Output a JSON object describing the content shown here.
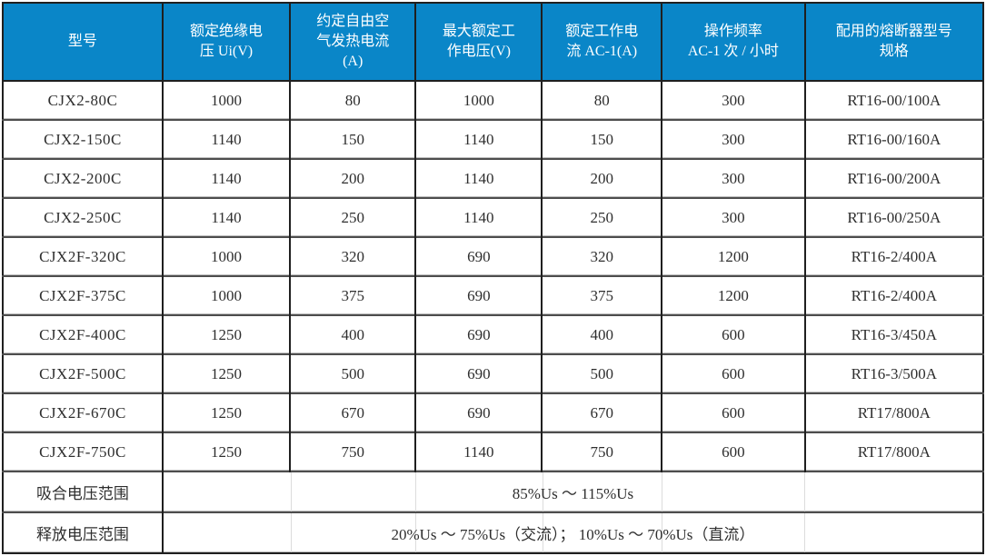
{
  "table": {
    "columns": [
      {
        "id": "model",
        "label": "型号"
      },
      {
        "id": "rated_insulation_voltage",
        "label": "额定绝缘电\n压 Ui(V)"
      },
      {
        "id": "conventional_free_air_thermal_current",
        "label": "约定自由空\n气发热电流\n(A)"
      },
      {
        "id": "max_rated_working_voltage",
        "label": "最大额定工\n作电压(V)"
      },
      {
        "id": "rated_working_current_ac1",
        "label": "额定工作电\n流 AC-1(A)"
      },
      {
        "id": "operating_frequency",
        "label": "操作频率\nAC-1 次 / 小时"
      },
      {
        "id": "matched_fuse_spec",
        "label": "配用的熔断器型号\n规格"
      }
    ],
    "rows": [
      [
        "CJX2-80C",
        "1000",
        "80",
        "1000",
        "80",
        "300",
        "RT16-00/100A"
      ],
      [
        "CJX2-150C",
        "1140",
        "150",
        "1140",
        "150",
        "300",
        "RT16-00/160A"
      ],
      [
        "CJX2-200C",
        "1140",
        "200",
        "1140",
        "200",
        "300",
        "RT16-00/200A"
      ],
      [
        "CJX2-250C",
        "1140",
        "250",
        "1140",
        "250",
        "300",
        "RT16-00/250A"
      ],
      [
        "CJX2F-320C",
        "1000",
        "320",
        "690",
        "320",
        "1200",
        "RT16-2/400A"
      ],
      [
        "CJX2F-375C",
        "1000",
        "375",
        "690",
        "375",
        "1200",
        "RT16-2/400A"
      ],
      [
        "CJX2F-400C",
        "1250",
        "400",
        "690",
        "400",
        "600",
        "RT16-3/450A"
      ],
      [
        "CJX2F-500C",
        "1250",
        "500",
        "690",
        "500",
        "600",
        "RT16-3/500A"
      ],
      [
        "CJX2F-670C",
        "1250",
        "670",
        "690",
        "670",
        "600",
        "RT17/800A"
      ],
      [
        "CJX2F-750C",
        "1250",
        "750",
        "1140",
        "750",
        "600",
        "RT17/800A"
      ]
    ],
    "footer_rows": [
      {
        "label": "吸合电压范围",
        "value": "85%Us ～ 115%Us"
      },
      {
        "label": "释放电压范围",
        "value": "20%Us ～ 75%Us（交流）； 10%Us ～ 70%Us（直流）"
      }
    ]
  },
  "colors": {
    "header_bg": "#0A86C8",
    "header_text": "#FFFFFF",
    "body_text": "#2E2E2E",
    "grid_dark": "#1F1F1F",
    "grid_mid": "#4D4D4D",
    "ghost_line": "#DCDCDC"
  }
}
